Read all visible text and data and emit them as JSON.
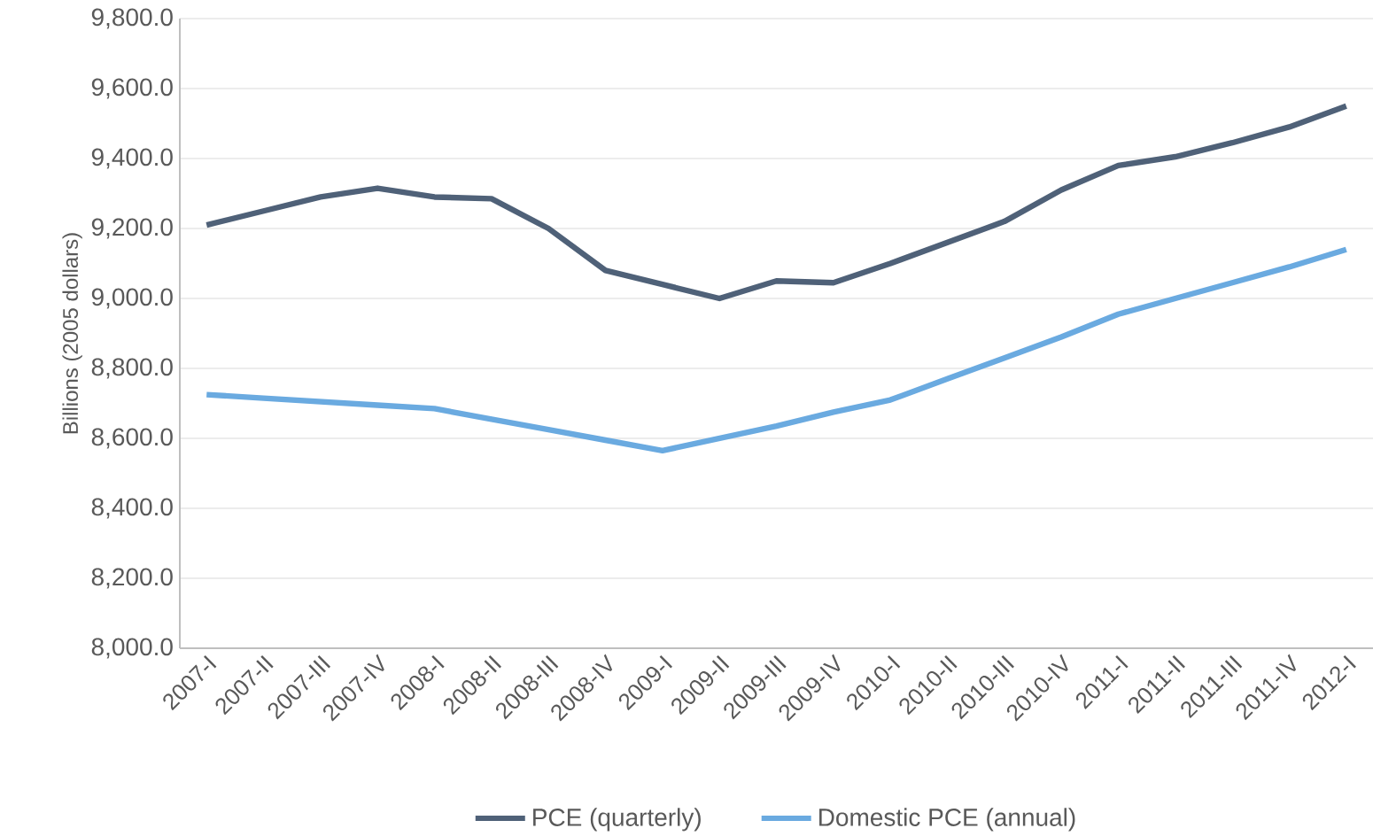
{
  "chart_data": {
    "type": "line",
    "ylabel": "Billions (2005 dollars)",
    "categories": [
      "2007-I",
      "2007-II",
      "2007-III",
      "2007-IV",
      "2008-I",
      "2008-II",
      "2008-III",
      "2008-IV",
      "2009-I",
      "2009-II",
      "2009-III",
      "2009-IV",
      "2010-I",
      "2010-II",
      "2010-III",
      "2010-IV",
      "2011-I",
      "2011-II",
      "2011-III",
      "2011-IV",
      "2012-I"
    ],
    "series": [
      {
        "name": "PCE (quarterly)",
        "color": "#4f6178",
        "values": [
          9210,
          9250,
          9290,
          9315,
          9290,
          9285,
          9200,
          9080,
          9040,
          9000,
          9050,
          9045,
          9100,
          9160,
          9220,
          9310,
          9380,
          9405,
          9445,
          9490,
          9550
        ]
      },
      {
        "name": "Domestic PCE (annual)",
        "color": "#6aaae0",
        "values": [
          8725,
          8715,
          8705,
          8695,
          8685,
          8655,
          8625,
          8595,
          8565,
          8600,
          8635,
          8675,
          8710,
          8770,
          8830,
          8890,
          8955,
          9000,
          9045,
          9090,
          9140
        ]
      }
    ],
    "ylim": [
      8000,
      9800
    ],
    "yticks": [
      {
        "value": 8000,
        "label": "8,000.0"
      },
      {
        "value": 8200,
        "label": "8,200.0"
      },
      {
        "value": 8400,
        "label": "8,400.0"
      },
      {
        "value": 8600,
        "label": "8,600.0"
      },
      {
        "value": 8800,
        "label": "8,800.0"
      },
      {
        "value": 9000,
        "label": "9,000.0"
      },
      {
        "value": 9200,
        "label": "9,200.0"
      },
      {
        "value": 9400,
        "label": "9,400.0"
      },
      {
        "value": 9600,
        "label": "9,600.0"
      },
      {
        "value": 9800,
        "label": "9,800.0"
      }
    ],
    "grid": "y",
    "legend": "bottom",
    "marker": "none",
    "line_style": "solid"
  }
}
